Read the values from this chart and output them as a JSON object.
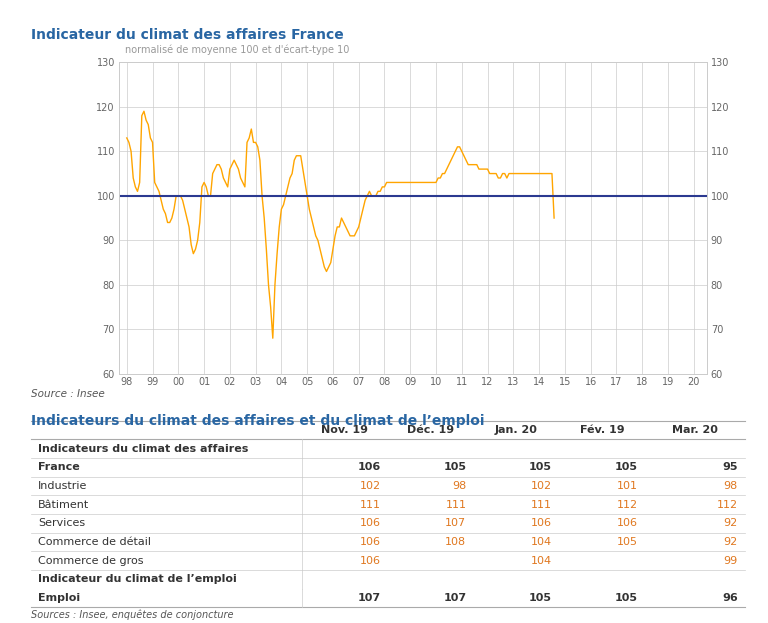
{
  "chart_title": "Indicateur du climat des affaires France",
  "chart_subtitle": "normalisé de moyenne 100 et d'écart-type 10",
  "chart_source": "Source : Insee",
  "table_title": "Indicateurs du climat des affaires et du climat de l’emploi",
  "table_source": "Sources : Insee, enquêtes de conjoncture",
  "line_color": "#FFA500",
  "hline_color": "#2B3990",
  "ylim": [
    60,
    130
  ],
  "yticks": [
    60,
    70,
    80,
    90,
    100,
    110,
    120,
    130
  ],
  "xtick_labels": [
    "98",
    "99",
    "00",
    "01",
    "02",
    "03",
    "04",
    "05",
    "06",
    "07",
    "08",
    "09",
    "10",
    "11",
    "12",
    "13",
    "14",
    "15",
    "16",
    "17",
    "18",
    "19",
    "20"
  ],
  "title_color": "#2966A3",
  "orange_color": "#E07820",
  "dark_color": "#333333",
  "columns": [
    "",
    "Nov. 19",
    "Déc. 19",
    "Jan. 20",
    "Fév. 19",
    "Mar. 20"
  ],
  "section1_header": "Indicateurs du climat des affaires",
  "rows_affaires": [
    {
      "label": "France",
      "bold": true,
      "values": [
        "106",
        "105",
        "105",
        "105",
        "95"
      ]
    },
    {
      "label": "Industrie",
      "bold": false,
      "values": [
        "102",
        "98",
        "102",
        "101",
        "98"
      ]
    },
    {
      "label": "Bâtiment",
      "bold": false,
      "values": [
        "111",
        "111",
        "111",
        "112",
        "112"
      ]
    },
    {
      "label": "Services",
      "bold": false,
      "values": [
        "106",
        "107",
        "106",
        "106",
        "92"
      ]
    },
    {
      "label": "Commerce de détail",
      "bold": false,
      "values": [
        "106",
        "108",
        "104",
        "105",
        "92"
      ]
    },
    {
      "label": "Commerce de gros",
      "bold": false,
      "values": [
        "106",
        "",
        "104",
        "",
        "99"
      ]
    }
  ],
  "section2_header": "Indicateur du climat de l’emploi",
  "rows_emploi": [
    {
      "label": "Emploi",
      "bold": true,
      "values": [
        "107",
        "107",
        "105",
        "105",
        "96"
      ]
    }
  ],
  "ts_values": [
    113,
    112,
    110,
    104,
    102,
    101,
    103,
    118,
    119,
    117,
    116,
    113,
    112,
    103,
    102,
    101,
    99,
    97,
    96,
    94,
    94,
    95,
    97,
    100,
    100,
    100,
    99,
    97,
    95,
    93,
    89,
    87,
    88,
    90,
    94,
    102,
    103,
    102,
    100,
    100,
    105,
    106,
    107,
    107,
    106,
    104,
    103,
    102,
    106,
    107,
    108,
    107,
    106,
    104,
    103,
    102,
    112,
    113,
    115,
    112,
    112,
    111,
    108,
    100,
    95,
    88,
    80,
    75,
    68,
    80,
    87,
    93,
    97,
    98,
    100,
    102,
    104,
    105,
    108,
    109,
    109,
    109,
    106,
    103,
    100,
    97,
    95,
    93,
    91,
    90,
    88,
    86,
    84,
    83,
    84,
    85,
    88,
    91,
    93,
    93,
    95,
    94,
    93,
    92,
    91,
    91,
    91,
    92,
    93,
    95,
    97,
    99,
    100,
    101,
    100,
    100,
    100,
    101,
    101,
    102,
    102,
    103,
    103,
    103,
    103,
    103,
    103,
    103,
    103,
    103,
    103,
    103,
    103,
    103,
    103,
    103,
    103,
    103,
    103,
    103,
    103,
    103,
    103,
    103,
    103,
    104,
    104,
    105,
    105,
    106,
    107,
    108,
    109,
    110,
    111,
    111,
    110,
    109,
    108,
    107,
    107,
    107,
    107,
    107,
    106,
    106,
    106,
    106,
    106,
    105,
    105,
    105,
    105,
    104,
    104,
    105,
    105,
    104,
    105,
    105,
    105,
    105,
    105,
    105,
    105,
    105,
    105,
    105,
    105,
    105,
    105,
    105,
    105,
    105,
    105,
    105,
    105,
    105,
    105,
    95
  ]
}
